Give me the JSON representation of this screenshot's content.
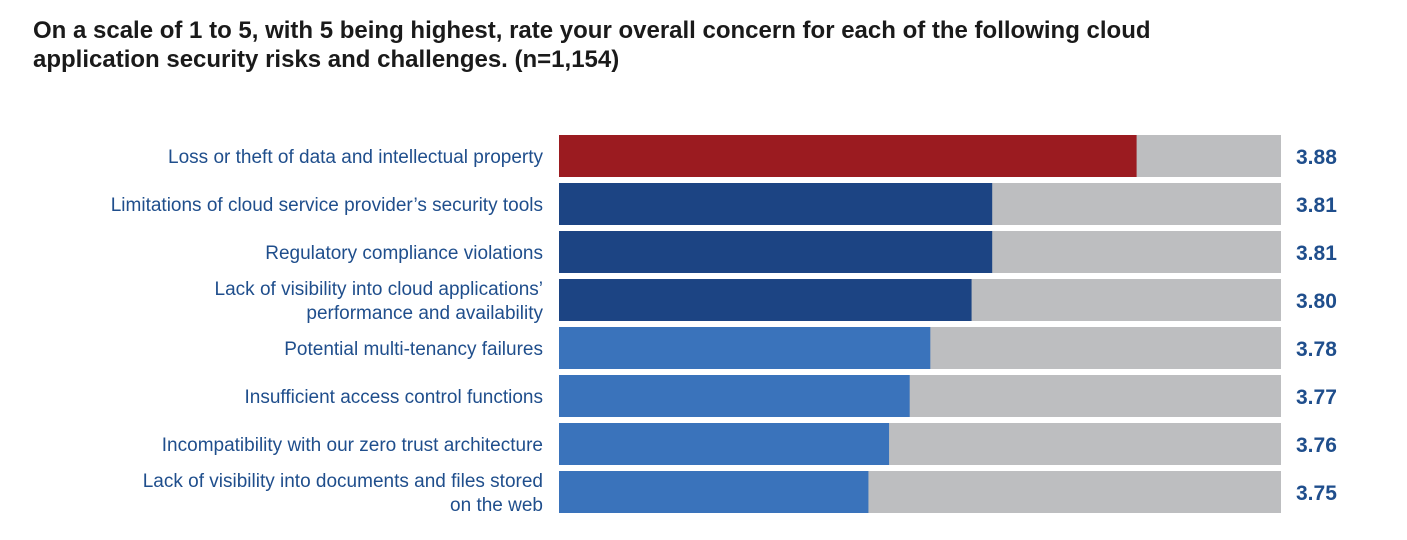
{
  "title": {
    "line1": "On a scale of 1 to 5, with 5 being highest, rate your overall concern for each of the following cloud",
    "line2": "application security risks and challenges. (n=1,154)"
  },
  "colors": {
    "highlight": "#9b1b20",
    "dark_blue": "#1c4483",
    "light_blue": "#3a73bb",
    "track": "#bdbec0",
    "label_text": "#1f4e8c"
  },
  "chart_data": {
    "type": "bar",
    "orientation": "horizontal",
    "title": "On a scale of 1 to 5, with 5 being highest, rate your overall concern for each of the following cloud application security risks and challenges. (n=1,154)",
    "categories": [
      "Loss or theft of data and intellectual property",
      "Limitations of cloud service provider’s security tools",
      "Regulatory compliance violations",
      "Lack of visibility into cloud applications’ performance and availability",
      "Potential multi-tenancy failures",
      "Insufficient access control functions",
      "Incompatibility with our zero trust architecture",
      "Lack of visibility into documents and files stored on the web"
    ],
    "label_lines": [
      [
        "Loss or theft of data and intellectual property"
      ],
      [
        "Limitations of cloud service provider’s security tools"
      ],
      [
        "Regulatory compliance violations"
      ],
      [
        "Lack of visibility into cloud applications’",
        "performance and availability"
      ],
      [
        "Potential multi-tenancy failures"
      ],
      [
        "Insufficient access control functions"
      ],
      [
        "Incompatibility with our zero trust architecture"
      ],
      [
        "Lack of visibility into documents and files stored",
        "on the web"
      ]
    ],
    "values": [
      3.88,
      3.81,
      3.81,
      3.8,
      3.78,
      3.77,
      3.76,
      3.75
    ],
    "value_labels": [
      "3.88",
      "3.81",
      "3.81",
      "3.80",
      "3.78",
      "3.77",
      "3.76",
      "3.75"
    ],
    "color_groups": [
      "highlight",
      "dark_blue",
      "dark_blue",
      "dark_blue",
      "light_blue",
      "light_blue",
      "light_blue",
      "light_blue"
    ],
    "xlim": [
      3.6,
      3.95
    ],
    "axis_visible": false,
    "grid": false,
    "legend": "none"
  }
}
